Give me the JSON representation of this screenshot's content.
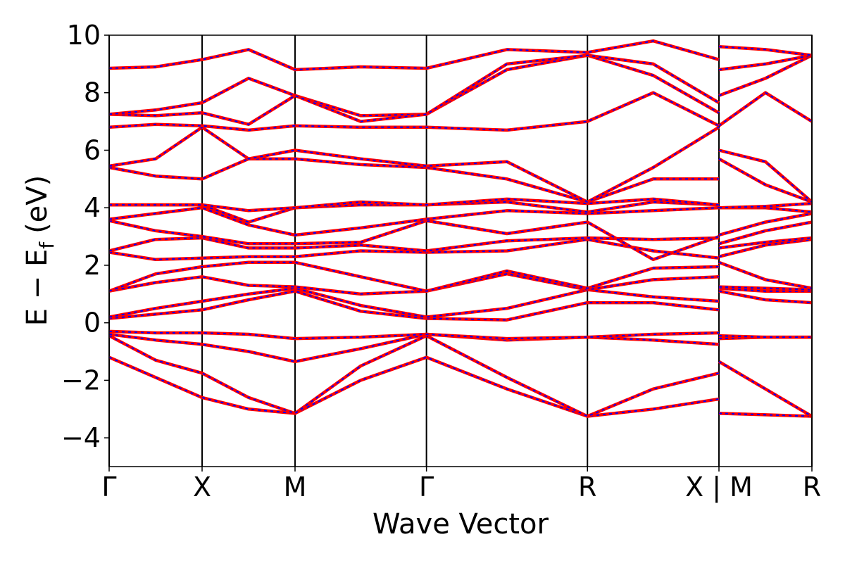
{
  "chart_data": {
    "type": "line",
    "xlabel": "Wave Vector",
    "ylabel": [
      "E − E",
      "f",
      "(eV)"
    ],
    "xlim": [
      0,
      7.561
    ],
    "ylim": [
      -5,
      10
    ],
    "xticks": [
      {
        "value": 0,
        "label": "Γ"
      },
      {
        "value": 1,
        "label": "X"
      },
      {
        "value": 2,
        "label": "M"
      },
      {
        "value": 3.414,
        "label": "Γ"
      },
      {
        "value": 5.146,
        "label": "R"
      },
      {
        "value": 6.561,
        "label": "X | M"
      },
      {
        "value": 7.561,
        "label": "R"
      }
    ],
    "yticks": [
      {
        "value": -4,
        "label": "−4"
      },
      {
        "value": -2,
        "label": "−2"
      },
      0,
      2,
      4,
      6,
      8,
      10
    ],
    "vertical_lines_at_ticks": true,
    "x": [
      0,
      0.5,
      1,
      1.5,
      2,
      2.707,
      3.414,
      4.28,
      5.146,
      5.854,
      6.561,
      6.561,
      6.561,
      7.061,
      7.561
    ],
    "line_color": "#ff0000",
    "dash_color": "#0000ff",
    "series": [
      {
        "values": [
          -1.2,
          -1.9,
          -2.6,
          -3.0,
          -3.15,
          -2.0,
          -1.2,
          -2.3,
          -3.25,
          -3.0,
          -2.65,
          null,
          -3.15,
          -3.2,
          -3.25
        ]
      },
      {
        "values": [
          -0.45,
          -1.3,
          -1.75,
          -2.6,
          -3.15,
          -1.5,
          -0.45,
          -1.9,
          -3.25,
          -2.3,
          -1.75,
          null,
          -1.35,
          -2.3,
          -3.25
        ]
      },
      {
        "values": [
          -0.4,
          -0.6,
          -0.75,
          -1.0,
          -1.35,
          -0.9,
          -0.4,
          -0.6,
          -0.5,
          -0.6,
          -0.75,
          null,
          -0.55,
          -0.5,
          -0.5
        ]
      },
      {
        "values": [
          -0.3,
          -0.35,
          -0.35,
          -0.4,
          -0.55,
          -0.5,
          -0.4,
          -0.55,
          -0.5,
          -0.4,
          -0.35,
          null,
          -0.45,
          -0.5,
          -0.5
        ]
      },
      {
        "values": [
          0.15,
          0.3,
          0.45,
          0.8,
          1.1,
          0.4,
          0.15,
          0.1,
          0.7,
          0.7,
          0.45,
          null,
          1.1,
          0.8,
          0.7
        ]
      },
      {
        "values": [
          0.2,
          0.5,
          0.75,
          1.0,
          1.2,
          0.6,
          0.2,
          0.5,
          1.15,
          0.9,
          0.75,
          null,
          1.2,
          1.1,
          1.1
        ]
      },
      {
        "values": [
          1.1,
          1.4,
          1.6,
          1.3,
          1.25,
          1.0,
          1.1,
          1.7,
          1.15,
          1.5,
          1.6,
          null,
          1.25,
          1.2,
          1.15
        ]
      },
      {
        "values": [
          1.1,
          1.7,
          1.95,
          2.1,
          2.1,
          1.6,
          1.1,
          1.8,
          1.2,
          1.9,
          1.95,
          null,
          2.1,
          1.5,
          1.2
        ]
      },
      {
        "values": [
          2.45,
          2.2,
          2.25,
          2.3,
          2.3,
          2.5,
          2.45,
          2.5,
          2.9,
          2.5,
          2.25,
          null,
          2.3,
          2.7,
          2.9
        ]
      },
      {
        "values": [
          2.5,
          2.9,
          2.95,
          2.6,
          2.6,
          2.7,
          2.5,
          2.85,
          2.95,
          2.9,
          2.95,
          null,
          2.6,
          2.8,
          2.95
        ]
      },
      {
        "values": [
          3.55,
          3.2,
          3.0,
          2.75,
          2.75,
          2.8,
          3.55,
          3.1,
          3.5,
          2.2,
          3.0,
          null,
          2.75,
          3.2,
          3.5
        ]
      },
      {
        "values": [
          3.6,
          3.8,
          4.0,
          3.4,
          3.05,
          3.3,
          3.6,
          3.9,
          3.8,
          3.9,
          4.0,
          null,
          3.05,
          3.5,
          3.8
        ]
      },
      {
        "values": [
          4.1,
          4.1,
          4.1,
          3.5,
          4.0,
          4.1,
          4.1,
          4.2,
          3.85,
          4.2,
          4.1,
          null,
          4.0,
          4.0,
          3.85
        ]
      },
      {
        "values": [
          4.1,
          4.1,
          4.1,
          3.9,
          4.0,
          4.2,
          4.1,
          4.3,
          4.15,
          4.3,
          4.1,
          null,
          4.0,
          4.05,
          4.15
        ]
      },
      {
        "values": [
          5.4,
          5.1,
          5.0,
          5.7,
          5.7,
          5.5,
          5.4,
          5.0,
          4.2,
          5.0,
          5.0,
          null,
          5.7,
          4.8,
          4.2
        ]
      },
      {
        "values": [
          5.45,
          5.7,
          6.8,
          5.7,
          6.0,
          5.7,
          5.45,
          5.6,
          4.2,
          5.4,
          6.8,
          null,
          6.0,
          5.6,
          4.2
        ]
      },
      {
        "values": [
          6.8,
          6.9,
          6.85,
          6.7,
          6.85,
          6.8,
          6.8,
          6.7,
          7.0,
          8.0,
          6.85,
          null,
          6.85,
          8.0,
          7.0
        ]
      },
      {
        "values": [
          7.25,
          7.2,
          7.3,
          6.9,
          7.9,
          7.2,
          7.25,
          8.8,
          9.3,
          8.6,
          7.3,
          null,
          7.9,
          8.5,
          9.3
        ]
      },
      {
        "values": [
          7.25,
          7.4,
          7.65,
          8.5,
          7.9,
          7.0,
          7.25,
          9.0,
          9.3,
          9.0,
          7.65,
          null,
          8.8,
          9.0,
          9.3
        ]
      },
      {
        "values": [
          8.85,
          8.9,
          9.15,
          9.5,
          8.8,
          8.9,
          8.85,
          9.5,
          9.4,
          9.8,
          9.15,
          null,
          9.6,
          9.5,
          9.3
        ]
      }
    ]
  }
}
